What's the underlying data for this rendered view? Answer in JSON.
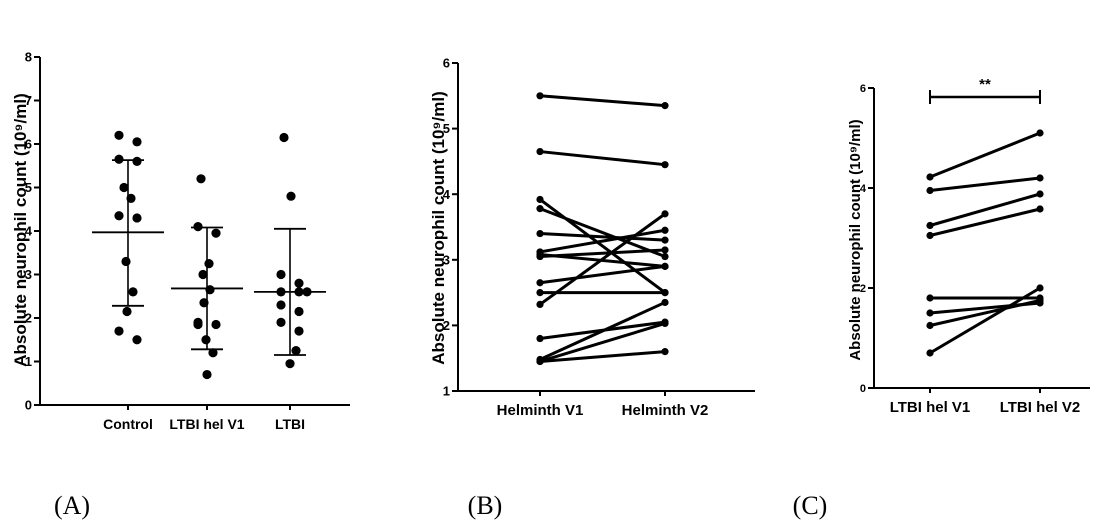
{
  "chart_data": [
    {
      "type": "scatter",
      "panel_label": "(A)",
      "ylabel": "Absolute neurophil count (10⁹/ml)",
      "ylim": [
        0,
        8
      ],
      "yticks": [
        "0",
        "1",
        "2",
        "3",
        "4",
        "5",
        "6",
        "7",
        "8"
      ],
      "categories": [
        "Control",
        "LTBI hel V1",
        "LTBI"
      ],
      "series": [
        {
          "category": "Control",
          "values": [
            6.2,
            6.05,
            5.65,
            5.6,
            5.0,
            4.75,
            4.35,
            4.3,
            3.3,
            2.6,
            2.15,
            1.7,
            1.5
          ],
          "mean": 3.97,
          "upper": 5.63,
          "lower": 2.28
        },
        {
          "category": "LTBI hel V1",
          "values": [
            5.2,
            4.1,
            3.95,
            3.25,
            3.0,
            2.65,
            2.35,
            1.9,
            1.85,
            1.85,
            1.5,
            1.2,
            0.7
          ],
          "mean": 2.68,
          "upper": 4.08,
          "lower": 1.28
        },
        {
          "category": "LTBI",
          "values": [
            6.15,
            4.8,
            3.0,
            2.8,
            2.6,
            2.6,
            2.6,
            2.3,
            2.15,
            1.9,
            1.7,
            1.25,
            0.95
          ],
          "mean": 2.6,
          "upper": 4.05,
          "lower": 1.15
        }
      ]
    },
    {
      "type": "line",
      "panel_label": "(B)",
      "ylabel": "Absolute neurophil count (10⁹/ml)",
      "ylim": [
        1,
        6
      ],
      "yticks": [
        "1",
        "2",
        "3",
        "4",
        "5",
        "6"
      ],
      "categories": [
        "Helminth V1",
        "Helminth V2"
      ],
      "pairs": [
        [
          5.5,
          5.35
        ],
        [
          4.65,
          4.45
        ],
        [
          3.92,
          2.5
        ],
        [
          3.78,
          3.05
        ],
        [
          3.4,
          3.3
        ],
        [
          3.12,
          3.45
        ],
        [
          3.08,
          2.9
        ],
        [
          3.05,
          3.15
        ],
        [
          2.65,
          2.9
        ],
        [
          2.5,
          2.5
        ],
        [
          2.32,
          3.7
        ],
        [
          1.8,
          2.05
        ],
        [
          1.48,
          2.35
        ],
        [
          1.45,
          2.03
        ],
        [
          1.45,
          1.6
        ]
      ]
    },
    {
      "type": "line",
      "panel_label": "(C)",
      "ylabel": "Absolute neurophil count (10⁹/ml)",
      "ylim": [
        0,
        6
      ],
      "yticks": [
        "0",
        "2",
        "4",
        "6"
      ],
      "categories": [
        "LTBI hel V1",
        "LTBI hel V2"
      ],
      "significance": "**",
      "pairs": [
        [
          4.22,
          5.1
        ],
        [
          3.95,
          4.2
        ],
        [
          3.25,
          3.88
        ],
        [
          3.05,
          3.58
        ],
        [
          1.8,
          1.8
        ],
        [
          1.5,
          1.7
        ],
        [
          1.25,
          1.75
        ],
        [
          0.7,
          2.0
        ]
      ]
    }
  ]
}
